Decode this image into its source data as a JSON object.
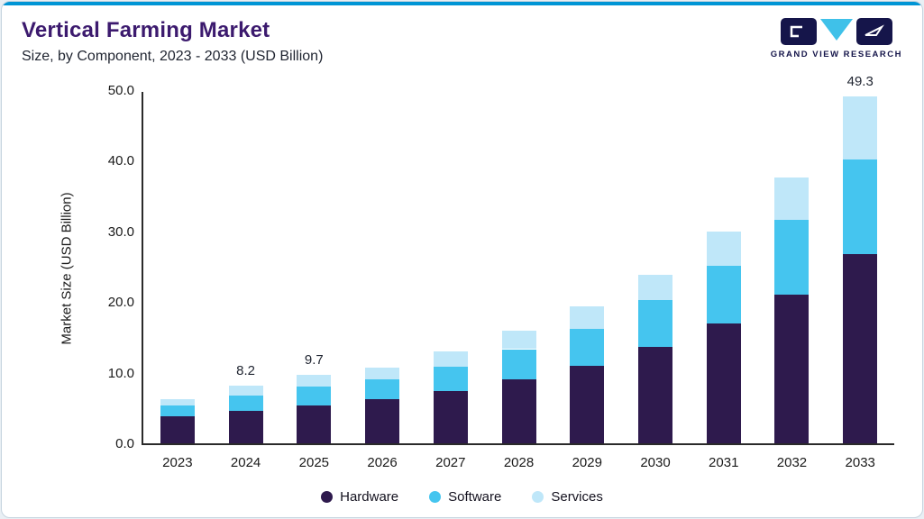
{
  "header": {
    "title": "Vertical Farming Market",
    "subtitle": "Size, by Component, 2023 - 2033 (USD Billion)",
    "logo_text": "GRAND VIEW RESEARCH"
  },
  "colors": {
    "accent_strip": "#0095d5",
    "title": "#3c1a6e",
    "logo_navy": "#15154a",
    "logo_cyan": "#3fc1e9"
  },
  "chart_data": {
    "type": "bar",
    "stacked": true,
    "title": "Vertical Farming Market",
    "subtitle": "Size, by Component, 2023 - 2033 (USD Billion)",
    "xlabel": "",
    "ylabel": "Market Size (USD Billion)",
    "ylim": [
      0,
      50
    ],
    "yticks": [
      "0.0",
      "10.0",
      "20.0",
      "30.0",
      "40.0",
      "50.0"
    ],
    "grid": false,
    "legend_position": "bottom",
    "categories": [
      "2023",
      "2024",
      "2025",
      "2026",
      "2027",
      "2028",
      "2029",
      "2030",
      "2031",
      "2032",
      "2033"
    ],
    "series": [
      {
        "name": "Hardware",
        "color": "#2e1a4d",
        "values": [
          3.8,
          4.6,
          5.4,
          6.3,
          7.5,
          9.1,
          11.0,
          13.7,
          17.0,
          21.2,
          26.9
        ]
      },
      {
        "name": "Software",
        "color": "#45c5ef",
        "values": [
          1.6,
          2.2,
          2.7,
          2.8,
          3.4,
          4.3,
          5.3,
          6.7,
          8.2,
          10.6,
          13.5
        ]
      },
      {
        "name": "Services",
        "color": "#bfe7f9",
        "values": [
          0.9,
          1.4,
          1.6,
          1.7,
          2.2,
          2.6,
          3.2,
          3.6,
          4.9,
          6.0,
          8.9
        ]
      }
    ],
    "bar_labels": {
      "2024": "8.2",
      "2025": "9.7",
      "2033": "49.3"
    }
  }
}
